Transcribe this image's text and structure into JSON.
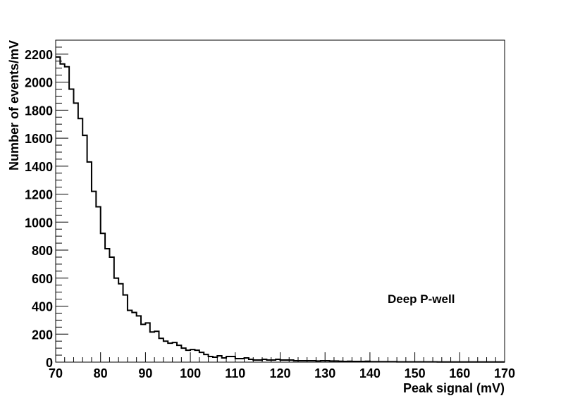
{
  "chart_data": {
    "type": "histogram",
    "xlabel": "Peak signal (mV)",
    "ylabel": "Number of events/mV",
    "annotation": "Deep P-well",
    "xlim": [
      70,
      170
    ],
    "ylim": [
      0,
      2300
    ],
    "x_ticks": [
      70,
      80,
      90,
      100,
      110,
      120,
      130,
      140,
      150,
      160,
      170
    ],
    "y_ticks": [
      0,
      200,
      400,
      600,
      800,
      1000,
      1200,
      1400,
      1600,
      1800,
      2000,
      2200
    ],
    "bin_width": 1,
    "bin_start": 70,
    "values": [
      2180,
      2130,
      2110,
      1950,
      1850,
      1740,
      1620,
      1430,
      1220,
      1110,
      920,
      810,
      750,
      600,
      560,
      480,
      370,
      355,
      330,
      270,
      280,
      215,
      220,
      170,
      150,
      135,
      140,
      120,
      100,
      85,
      90,
      85,
      70,
      55,
      40,
      35,
      45,
      30,
      40,
      40,
      25,
      25,
      30,
      20,
      15,
      15,
      20,
      15,
      15,
      20,
      15,
      15,
      15,
      10,
      10,
      10,
      10,
      10,
      8,
      10,
      10,
      8,
      8,
      6,
      5,
      6,
      5,
      5,
      5,
      6,
      3,
      3,
      3,
      3,
      3,
      3,
      2,
      2,
      2,
      2,
      2,
      2,
      2,
      2,
      2,
      1,
      1,
      1,
      1,
      1,
      1,
      1,
      1,
      1,
      1,
      1,
      1,
      1,
      1,
      1
    ],
    "grid": false,
    "style": {
      "line_color": "#000000"
    }
  }
}
